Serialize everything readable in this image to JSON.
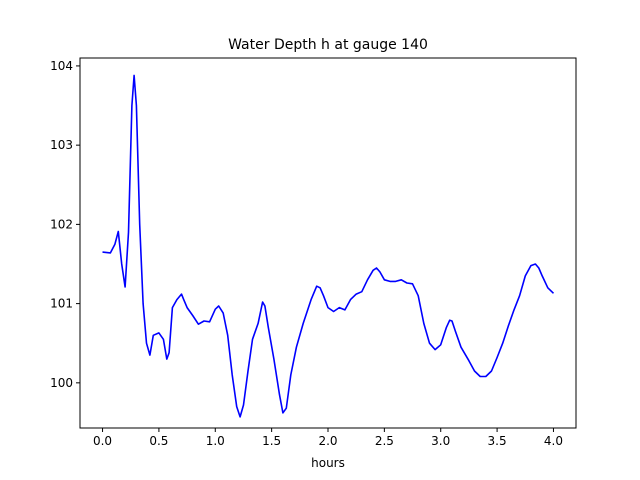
{
  "chart_data": {
    "type": "line",
    "title": "Water Depth h at gauge 140",
    "xlabel": "hours",
    "ylabel": "",
    "xlim": [
      -0.2,
      4.2
    ],
    "ylim": [
      99.43,
      104.1
    ],
    "grid": false,
    "legend": "none",
    "x_ticks": [
      0.0,
      0.5,
      1.0,
      1.5,
      2.0,
      2.5,
      3.0,
      3.5,
      4.0
    ],
    "x_tick_labels": [
      "0.0",
      "0.5",
      "1.0",
      "1.5",
      "2.0",
      "2.5",
      "3.0",
      "3.5",
      "4.0"
    ],
    "y_ticks": [
      100,
      101,
      102,
      103,
      104
    ],
    "y_tick_labels": [
      "100",
      "101",
      "102",
      "103",
      "104"
    ],
    "series": [
      {
        "color": "#0000ff",
        "x": [
          0.0,
          0.07,
          0.11,
          0.14,
          0.17,
          0.2,
          0.23,
          0.26,
          0.28,
          0.3,
          0.33,
          0.36,
          0.39,
          0.42,
          0.45,
          0.5,
          0.54,
          0.57,
          0.59,
          0.62,
          0.66,
          0.7,
          0.72,
          0.75,
          0.8,
          0.85,
          0.9,
          0.95,
          1.0,
          1.03,
          1.07,
          1.11,
          1.15,
          1.19,
          1.22,
          1.25,
          1.29,
          1.33,
          1.38,
          1.42,
          1.44,
          1.47,
          1.52,
          1.57,
          1.6,
          1.63,
          1.67,
          1.72,
          1.78,
          1.85,
          1.9,
          1.93,
          1.96,
          2.0,
          2.05,
          2.1,
          2.15,
          2.2,
          2.25,
          2.3,
          2.35,
          2.4,
          2.43,
          2.46,
          2.5,
          2.55,
          2.6,
          2.65,
          2.7,
          2.75,
          2.8,
          2.85,
          2.9,
          2.95,
          3.0,
          3.05,
          3.08,
          3.1,
          3.13,
          3.18,
          3.25,
          3.3,
          3.35,
          3.4,
          3.45,
          3.5,
          3.55,
          3.6,
          3.65,
          3.7,
          3.75,
          3.8,
          3.84,
          3.87,
          3.9,
          3.95,
          4.0
        ],
        "y": [
          101.65,
          101.64,
          101.75,
          101.91,
          101.5,
          101.21,
          101.9,
          103.5,
          103.88,
          103.5,
          102.0,
          101.0,
          100.5,
          100.35,
          100.6,
          100.63,
          100.55,
          100.3,
          100.38,
          100.95,
          101.05,
          101.12,
          101.05,
          100.95,
          100.85,
          100.74,
          100.78,
          100.77,
          100.93,
          100.97,
          100.88,
          100.6,
          100.1,
          99.7,
          99.57,
          99.72,
          100.15,
          100.55,
          100.75,
          101.02,
          100.97,
          100.7,
          100.3,
          99.85,
          99.62,
          99.68,
          100.1,
          100.45,
          100.75,
          101.05,
          101.22,
          101.2,
          101.1,
          100.95,
          100.9,
          100.95,
          100.92,
          101.05,
          101.12,
          101.15,
          101.3,
          101.42,
          101.45,
          101.4,
          101.3,
          101.28,
          101.28,
          101.3,
          101.26,
          101.25,
          101.1,
          100.75,
          100.5,
          100.42,
          100.48,
          100.7,
          100.79,
          100.78,
          100.65,
          100.45,
          100.28,
          100.15,
          100.08,
          100.08,
          100.15,
          100.32,
          100.5,
          100.72,
          100.92,
          101.1,
          101.35,
          101.48,
          101.5,
          101.45,
          101.35,
          101.2,
          101.13
        ]
      }
    ]
  }
}
